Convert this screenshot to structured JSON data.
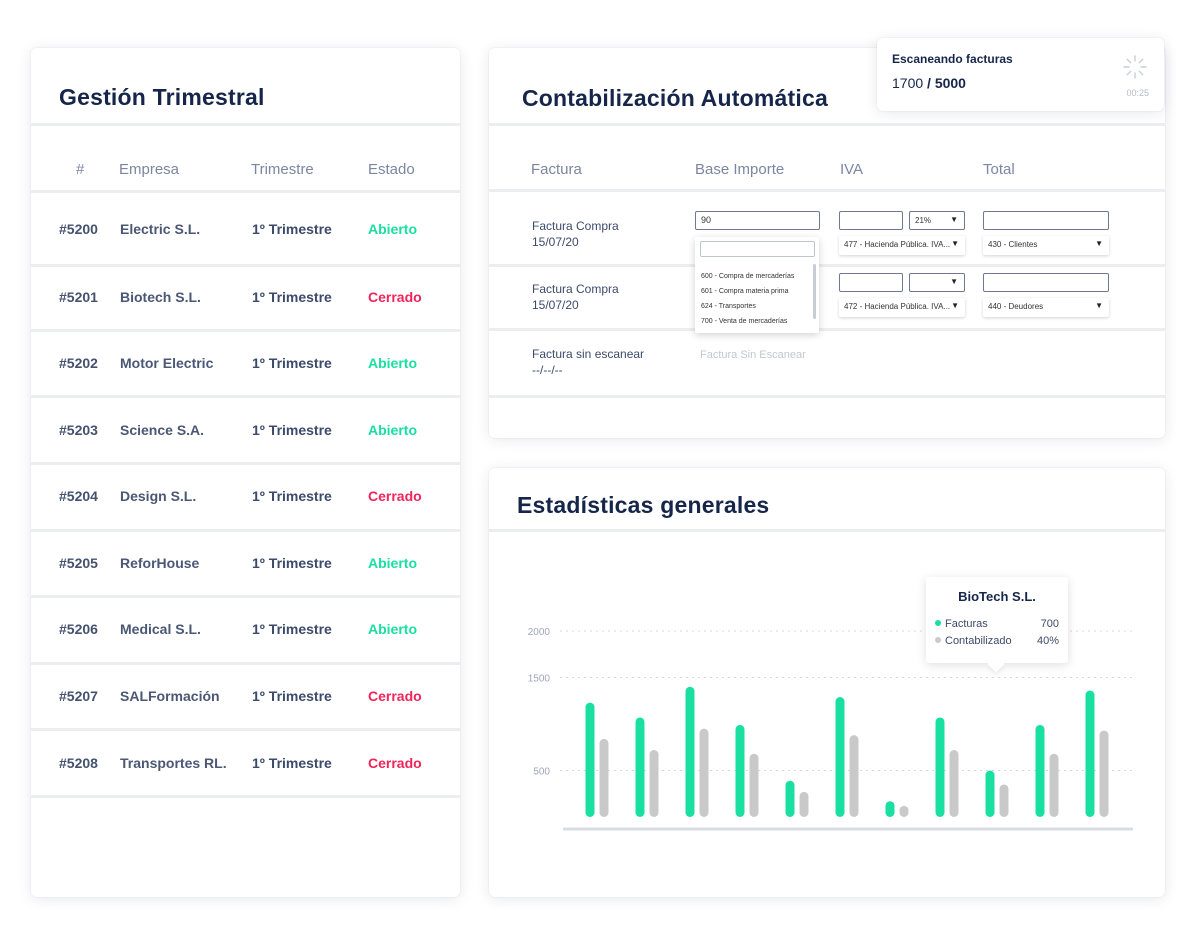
{
  "left_panel": {
    "title": "Gestión Trimestral",
    "headers": [
      "#",
      "Empresa",
      "Trimestre",
      "Estado"
    ],
    "rows": [
      {
        "num": "#5200",
        "empresa": "Electric S.L.",
        "trimestre": "1º Trimestre",
        "estado": "Abierto",
        "status": "open"
      },
      {
        "num": "#5201",
        "empresa": "Biotech S.L.",
        "trimestre": "1º Trimestre",
        "estado": "Cerrado",
        "status": "closed"
      },
      {
        "num": "#5202",
        "empresa": "Motor Electric",
        "trimestre": "1º Trimestre",
        "estado": "Abierto",
        "status": "open"
      },
      {
        "num": "#5203",
        "empresa": "Science S.A.",
        "trimestre": "1º Trimestre",
        "estado": "Abierto",
        "status": "open"
      },
      {
        "num": "#5204",
        "empresa": "Design S.L.",
        "trimestre": "1º Trimestre",
        "estado": "Cerrado",
        "status": "closed"
      },
      {
        "num": "#5205",
        "empresa": "ReforHouse",
        "trimestre": "1º Trimestre",
        "estado": "Abierto",
        "status": "open"
      },
      {
        "num": "#5206",
        "empresa": "Medical S.L.",
        "trimestre": "1º Trimestre",
        "estado": "Abierto",
        "status": "open"
      },
      {
        "num": "#5207",
        "empresa": "SALFormación",
        "trimestre": "1º Trimestre",
        "estado": "Cerrado",
        "status": "closed"
      },
      {
        "num": "#5208",
        "empresa": "Transportes RL.",
        "trimestre": "1º Trimestre",
        "estado": "Cerrado",
        "status": "closed"
      }
    ]
  },
  "accounting_panel": {
    "title": "Contabilización Automática",
    "headers": [
      "Factura",
      "Base Importe",
      "IVA",
      "Total"
    ],
    "invoices": [
      {
        "name": "Factura Compra",
        "date": "15/07/20",
        "base_value": "90",
        "iva_rate": "21%",
        "iva_account": "477 - Hacienda Pública. IVA...",
        "total_account": "430 - Clientes"
      },
      {
        "name": "Factura Compra",
        "date": "15/07/20",
        "base_value": "",
        "iva_rate": "",
        "iva_account": "472 - Hacienda Pública. IVA...",
        "total_account": "440 - Deudores"
      },
      {
        "name": "Factura sin escanear",
        "date": "--/--/--",
        "placeholder": "Factura Sin Escanear"
      }
    ],
    "dropdown_options": [
      "600 - Compra de mercaderías",
      "601 - Compra materia prima",
      "624 - Transportes",
      "700 - Venta de mercaderías"
    ]
  },
  "scan_toast": {
    "title": "Escaneando facturas",
    "current": "1700",
    "separator": " / ",
    "total": "5000",
    "time": "00:25"
  },
  "stats_panel": {
    "title": "Estadísticas generales",
    "tooltip": {
      "title": "BioTech S.L.",
      "rows": [
        {
          "label": "Facturas",
          "value": "700",
          "color": "#19e0a0"
        },
        {
          "label": "Contabilizado",
          "value": "40%",
          "color": "#c9c9c9"
        }
      ]
    }
  },
  "chart_data": {
    "type": "bar",
    "ylim": [
      0,
      2000
    ],
    "yticks": [
      500,
      1500,
      2000
    ],
    "grid": true,
    "series": [
      {
        "color": "#19e0a0",
        "values": [
          1230,
          1070,
          1400,
          990,
          390,
          1290,
          170,
          1070,
          500,
          990,
          1360
        ]
      },
      {
        "color": "#c9c9c9",
        "values": [
          840,
          720,
          950,
          680,
          270,
          880,
          120,
          720,
          350,
          680,
          930
        ]
      }
    ]
  },
  "colors": {
    "accent_green": "#19e0a0",
    "accent_red": "#f0245a",
    "bar_gray": "#c9c9c9",
    "title_navy": "#16264a"
  }
}
